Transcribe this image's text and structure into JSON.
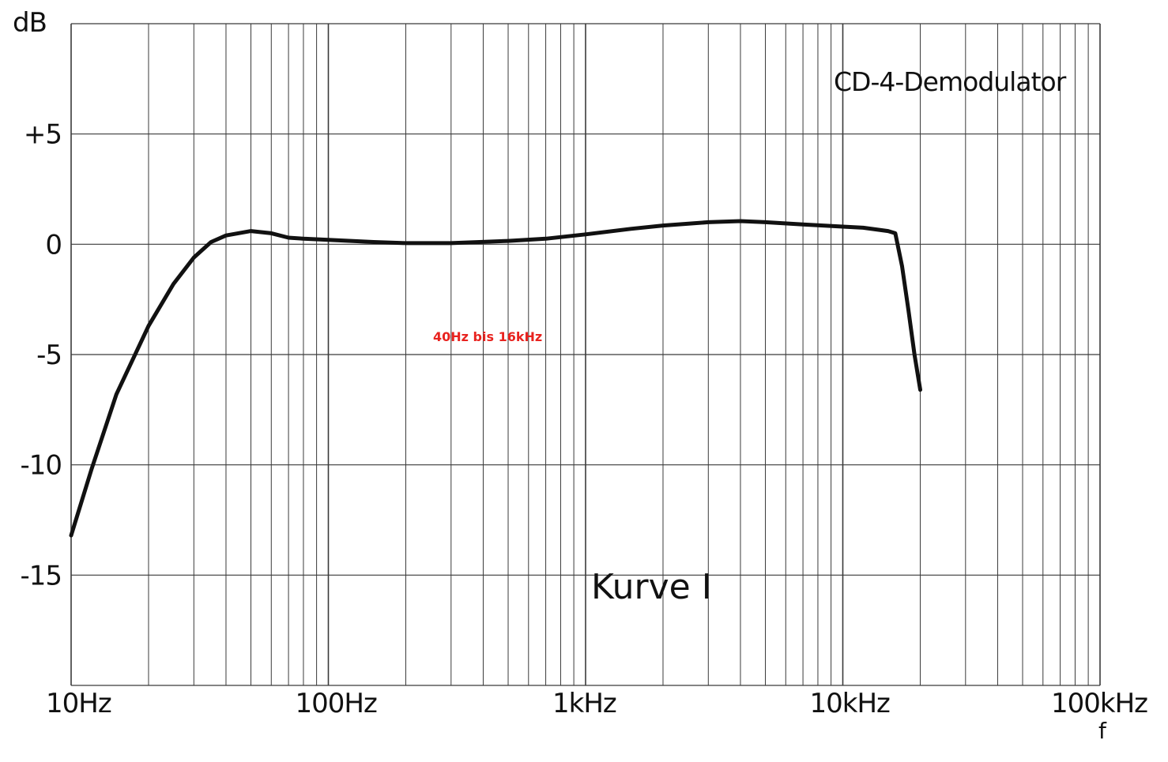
{
  "chart_data": {
    "type": "line",
    "title": "CD-4-Demodulator",
    "ylabel": "dB",
    "xlabel": "f",
    "x_scale": "log",
    "xlim": [
      10,
      100000
    ],
    "ylim": [
      -20,
      10
    ],
    "grid": true,
    "x_ticks": [
      {
        "value": 10,
        "label": "10Hz"
      },
      {
        "value": 100,
        "label": "100Hz"
      },
      {
        "value": 1000,
        "label": "1kHz"
      },
      {
        "value": 10000,
        "label": "10kHz"
      },
      {
        "value": 100000,
        "label": "100kHz"
      }
    ],
    "y_ticks": [
      {
        "value": 5,
        "label": "+5"
      },
      {
        "value": 0,
        "label": "0"
      },
      {
        "value": -5,
        "label": "-5"
      },
      {
        "value": -10,
        "label": "-10"
      },
      {
        "value": -15,
        "label": "-15"
      }
    ],
    "series": [
      {
        "x": [
          10,
          12,
          15,
          20,
          25,
          30,
          35,
          40,
          50,
          60,
          70,
          80,
          100,
          150,
          200,
          300,
          500,
          700,
          1000,
          1500,
          2000,
          3000,
          4000,
          5000,
          7000,
          10000,
          12000,
          15000,
          16000,
          17000,
          18000,
          19000,
          20000
        ],
        "y": [
          -13.2,
          -10.2,
          -6.8,
          -3.7,
          -1.8,
          -0.6,
          0.1,
          0.4,
          0.6,
          0.5,
          0.3,
          0.25,
          0.2,
          0.1,
          0.05,
          0.05,
          0.15,
          0.25,
          0.45,
          0.7,
          0.85,
          1.0,
          1.05,
          1.0,
          0.9,
          0.8,
          0.75,
          0.6,
          0.5,
          -1.0,
          -3.0,
          -5.0,
          -6.6
        ]
      }
    ],
    "annotations": [
      "Kurve I",
      "40Hz bis 16kHz"
    ],
    "colors": {
      "curve": "#111111",
      "grid": "#3a3a3a",
      "annotation_red": "#e8231f"
    }
  }
}
